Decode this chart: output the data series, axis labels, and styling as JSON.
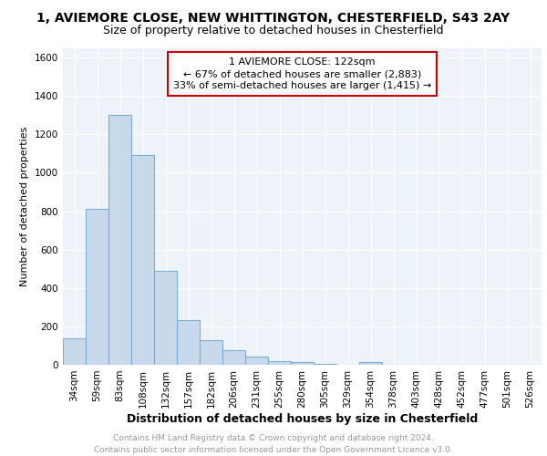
{
  "title_line1": "1, AVIEMORE CLOSE, NEW WHITTINGTON, CHESTERFIELD, S43 2AY",
  "title_line2": "Size of property relative to detached houses in Chesterfield",
  "xlabel": "Distribution of detached houses by size in Chesterfield",
  "ylabel": "Number of detached properties",
  "categories": [
    "34sqm",
    "59sqm",
    "83sqm",
    "108sqm",
    "132sqm",
    "157sqm",
    "182sqm",
    "206sqm",
    "231sqm",
    "255sqm",
    "280sqm",
    "305sqm",
    "329sqm",
    "354sqm",
    "378sqm",
    "403sqm",
    "428sqm",
    "452sqm",
    "477sqm",
    "501sqm",
    "526sqm"
  ],
  "values": [
    140,
    810,
    1300,
    1090,
    490,
    235,
    130,
    75,
    45,
    20,
    15,
    5,
    0,
    15,
    0,
    0,
    0,
    0,
    0,
    0,
    0
  ],
  "bar_color": "#c9d9ec",
  "bar_edge_color": "#7aafd4",
  "background_color": "#eef2f9",
  "annotation_box_text": "1 AVIEMORE CLOSE: 122sqm\n← 67% of detached houses are smaller (2,883)\n33% of semi-detached houses are larger (1,415) →",
  "annotation_box_color": "#cc0000",
  "ylim": [
    0,
    1650
  ],
  "yticks": [
    0,
    200,
    400,
    600,
    800,
    1000,
    1200,
    1400,
    1600
  ],
  "footer_text": "Contains HM Land Registry data © Crown copyright and database right 2024.\nContains public sector information licensed under the Open Government Licence v3.0.",
  "footer_color": "#999999",
  "grid_color": "#ffffff",
  "title1_fontsize": 10,
  "title2_fontsize": 9,
  "ylabel_fontsize": 8,
  "xlabel_fontsize": 9,
  "tick_fontsize": 7.5,
  "ann_fontsize": 8,
  "footer_fontsize": 6.5
}
